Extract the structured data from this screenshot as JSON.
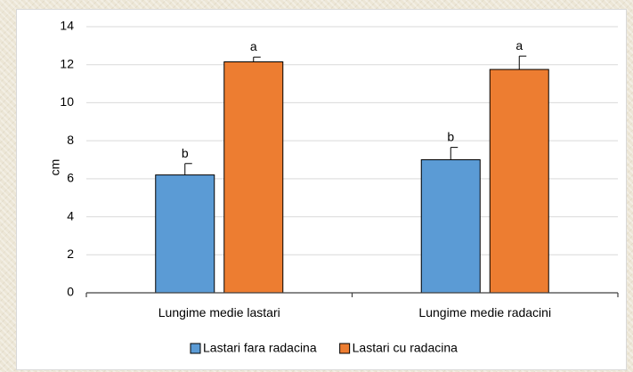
{
  "chart_data": {
    "type": "bar",
    "title": "",
    "xlabel": "",
    "ylabel": "cm",
    "ylim": [
      0,
      14
    ],
    "yticks": [
      0,
      2,
      4,
      6,
      8,
      10,
      12,
      14
    ],
    "grid": "horizontal",
    "legend_position": "bottom",
    "categories": [
      "Lungime medie lastari",
      "Lungime medie radacini"
    ],
    "series": [
      {
        "name": "Lastari fara radacina",
        "color": "#5b9bd5",
        "values": [
          6.2,
          7.0
        ],
        "errors": [
          0.6,
          0.65
        ],
        "labels": [
          "b",
          "b"
        ]
      },
      {
        "name": "Lastari cu radacina",
        "color": "#ed7d31",
        "values": [
          12.15,
          11.75
        ],
        "errors": [
          0.25,
          0.7
        ],
        "labels": [
          "a",
          "a"
        ]
      }
    ]
  }
}
